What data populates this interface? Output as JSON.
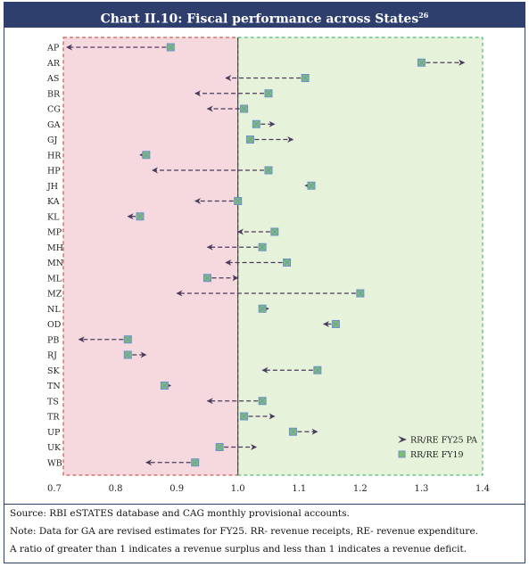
{
  "title": "Chart II.10: Fiscal performance across States",
  "title_footnote": "26",
  "chart_data": {
    "type": "scatter",
    "title": "Chart II.10: Fiscal performance across States",
    "xlim": [
      0.7,
      1.4
    ],
    "xticks": [
      "0.7",
      "0.8",
      "0.9",
      "1.0",
      "1.1",
      "1.2",
      "1.3",
      "1.4"
    ],
    "xtick_values": [
      0.7,
      0.8,
      0.9,
      1.0,
      1.1,
      1.2,
      1.3,
      1.4
    ],
    "threshold": 1.0,
    "legend_position": "bottom-right",
    "legend": {
      "pa": "RR/RE FY25 PA",
      "fy19": "RR/RE FY19"
    },
    "colors": {
      "deficit_fill": "#f5d9de",
      "deficit_border": "#c0392b",
      "surplus_fill": "#e6f3da",
      "surplus_border": "#27ae60",
      "arrow": "#4a3a5c",
      "marker_fill": "#7dbf6a",
      "marker_edge": "#6a8fd0"
    },
    "states": [
      {
        "state": "AP",
        "fy19": 0.89,
        "fy25": 0.72
      },
      {
        "state": "AR",
        "fy19": 1.3,
        "fy25": 1.37
      },
      {
        "state": "AS",
        "fy19": 1.11,
        "fy25": 0.98
      },
      {
        "state": "BR",
        "fy19": 1.05,
        "fy25": 0.93
      },
      {
        "state": "CG",
        "fy19": 1.01,
        "fy25": 0.95
      },
      {
        "state": "GA",
        "fy19": 1.03,
        "fy25": 1.06
      },
      {
        "state": "GJ",
        "fy19": 1.02,
        "fy25": 1.09
      },
      {
        "state": "HR",
        "fy19": 0.85,
        "fy25": 0.84
      },
      {
        "state": "HP",
        "fy19": 1.05,
        "fy25": 0.86
      },
      {
        "state": "JH",
        "fy19": 1.12,
        "fy25": 1.11
      },
      {
        "state": "KA",
        "fy19": 1.0,
        "fy25": 0.93
      },
      {
        "state": "KL",
        "fy19": 0.84,
        "fy25": 0.82
      },
      {
        "state": "MP",
        "fy19": 1.06,
        "fy25": 1.0
      },
      {
        "state": "MH",
        "fy19": 1.04,
        "fy25": 0.95
      },
      {
        "state": "MN",
        "fy19": 1.08,
        "fy25": 0.98
      },
      {
        "state": "ML",
        "fy19": 0.95,
        "fy25": 1.0
      },
      {
        "state": "MZ",
        "fy19": 1.2,
        "fy25": 0.9
      },
      {
        "state": "NL",
        "fy19": 1.04,
        "fy25": 1.05
      },
      {
        "state": "OD",
        "fy19": 1.16,
        "fy25": 1.14
      },
      {
        "state": "PB",
        "fy19": 0.82,
        "fy25": 0.74
      },
      {
        "state": "RJ",
        "fy19": 0.82,
        "fy25": 0.85
      },
      {
        "state": "SK",
        "fy19": 1.13,
        "fy25": 1.04
      },
      {
        "state": "TN",
        "fy19": 0.88,
        "fy25": 0.89
      },
      {
        "state": "TS",
        "fy19": 1.04,
        "fy25": 0.95
      },
      {
        "state": "TR",
        "fy19": 1.01,
        "fy25": 1.06
      },
      {
        "state": "UP",
        "fy19": 1.09,
        "fy25": 1.13
      },
      {
        "state": "UK",
        "fy19": 0.97,
        "fy25": 1.03
      },
      {
        "state": "WB",
        "fy19": 0.93,
        "fy25": 0.85
      }
    ]
  },
  "notes": {
    "source": "Source: RBI eSTATES database and CAG monthly provisional accounts.",
    "note": "Note: Data for GA are revised estimates for FY25. RR- revenue receipts, RE- revenue expenditure.",
    "ratio": "A ratio of greater than 1 indicates a revenue surplus and less than 1 indicates a revenue deficit."
  }
}
